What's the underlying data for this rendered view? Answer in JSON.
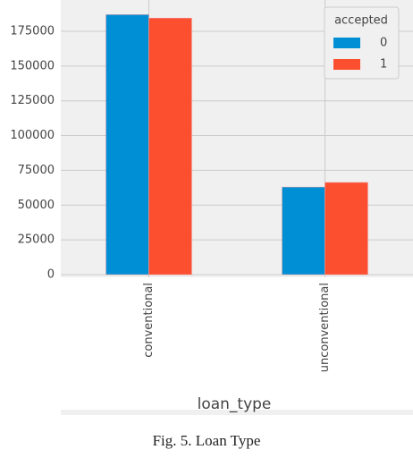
{
  "chart_data": {
    "type": "bar",
    "categories": [
      "conventional",
      "unconventional"
    ],
    "series": [
      {
        "name": "0",
        "color": "#008fd5",
        "values": [
          187000,
          63000
        ]
      },
      {
        "name": "1",
        "color": "#fc4f30",
        "values": [
          184500,
          66300
        ]
      }
    ],
    "legend_title": "accepted",
    "legend": "upper right",
    "xlabel": "loan_type",
    "ylim": [
      0,
      197500
    ],
    "yticks": [
      0,
      25000,
      50000,
      75000,
      100000,
      125000,
      150000,
      175000
    ],
    "grid": true
  },
  "caption": "Fig. 5. Loan Type"
}
